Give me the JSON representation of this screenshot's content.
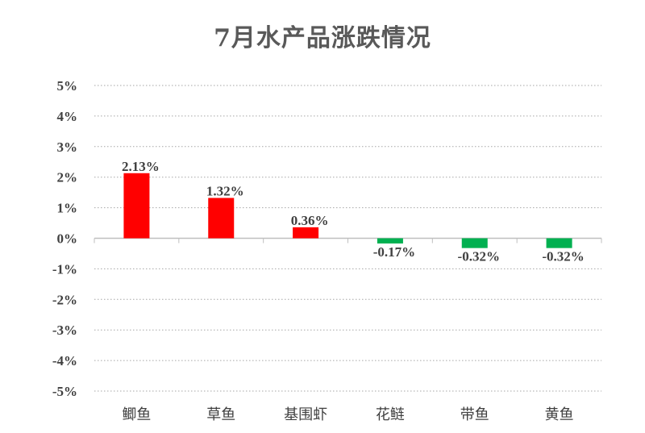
{
  "chart_data": {
    "type": "bar",
    "title": "7月水产品涨跌情况",
    "xlabel": "",
    "ylabel": "",
    "categories": [
      "鲫鱼",
      "草鱼",
      "基围虾",
      "花鲢",
      "带鱼",
      "黄鱼"
    ],
    "values": [
      2.13,
      1.32,
      0.36,
      -0.17,
      -0.32,
      -0.32
    ],
    "data_labels": [
      "2.13%",
      "1.32%",
      "0.36%",
      "-0.17%",
      "-0.32%",
      "-0.32%"
    ],
    "ylim": [
      -5,
      5
    ],
    "yticks": [
      5,
      4,
      3,
      2,
      1,
      0,
      -1,
      -2,
      -3,
      -4,
      -5
    ],
    "ytick_labels": [
      "5%",
      "4%",
      "3%",
      "2%",
      "1%",
      "0%",
      "-1%",
      "-2%",
      "-3%",
      "-4%",
      "-5%"
    ],
    "grid": "horizontal dotted",
    "legend": "none",
    "colors": {
      "positive": "#ff0000",
      "negative": "#00b050",
      "grid": "#a6a6a6",
      "axis": "#bfbfbf",
      "text": "#404040",
      "title": "#595959"
    }
  }
}
